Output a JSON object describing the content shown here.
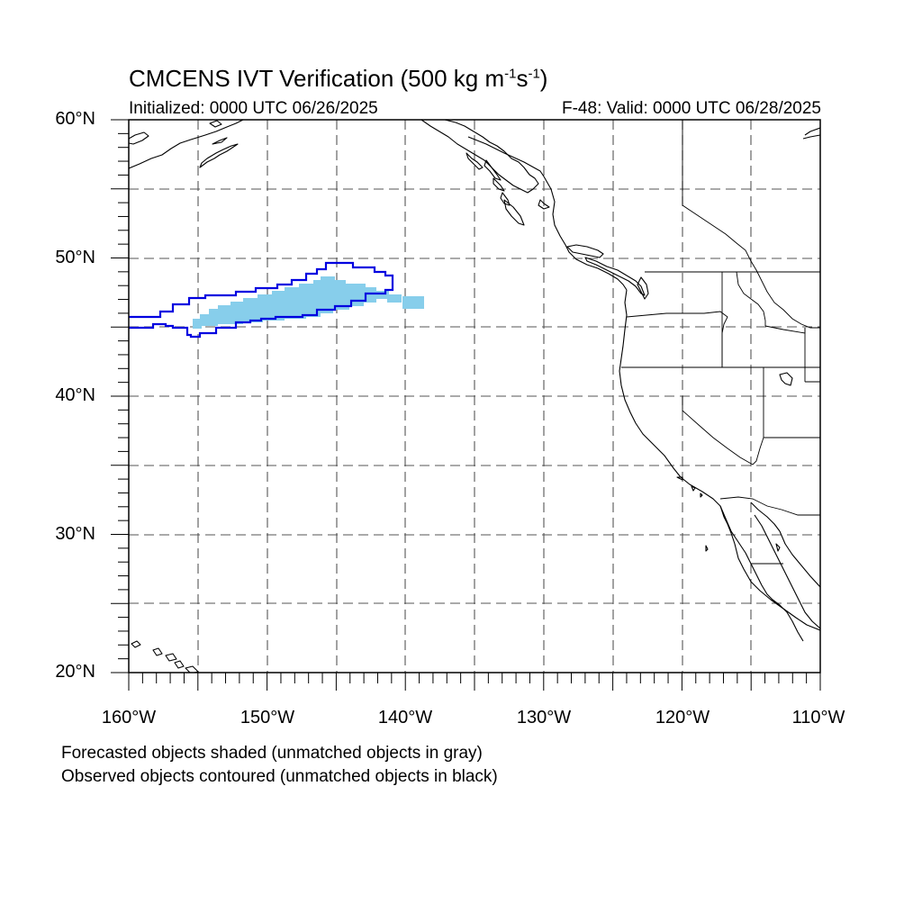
{
  "header": {
    "title_main": "CMCENS IVT Verification (500 kg m",
    "title_exp1": "-1",
    "title_mid": "s",
    "title_exp2": "-1",
    "title_end": ")",
    "initialized": "Initialized: 0000 UTC 06/26/2025",
    "valid": "F-48: Valid: 0000 UTC 06/28/2025"
  },
  "axes": {
    "lat_labels": [
      "60°N",
      "50°N",
      "40°N",
      "30°N",
      "20°N"
    ],
    "lon_labels": [
      "160°W",
      "150°W",
      "140°W",
      "130°W",
      "120°W",
      "110°W"
    ],
    "lat_range_deg": [
      20,
      60
    ],
    "lon_range_deg": [
      -160,
      -110
    ],
    "grid": "dashed every 5 degrees"
  },
  "legend": {
    "forecast_note": "Forecasted objects shaded (unmatched objects in gray)",
    "observed_note": "Observed objects contoured (unmatched objects in black)"
  },
  "colors": {
    "forecast_fill": "#87ceeb",
    "observed_contour": "#0000e0",
    "coastline": "#000000",
    "grid": "#555555"
  },
  "objects": {
    "forecast_shaded": "light blue IVT object centered near 47N 147W, extending from about 155W to 139W",
    "observed_contour": "blue contour from 160W to 141W between about 44.5N and 49.7N"
  }
}
